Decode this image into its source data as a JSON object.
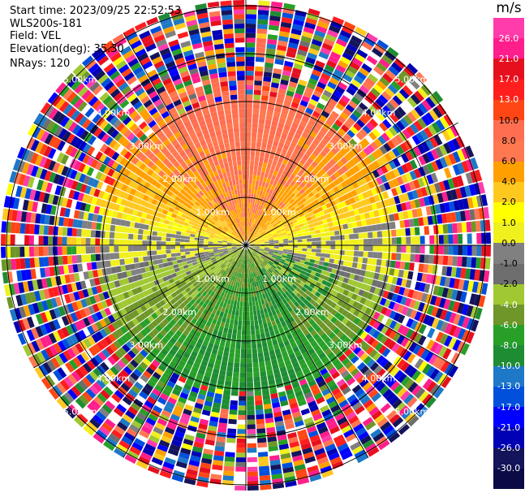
{
  "header": {
    "start_time": "Start time: 2023/09/25 22:52:53",
    "instrument": "WLS200s-181",
    "field": "Field: VEL",
    "elevation": "Elevation(deg): 35.30",
    "nrays": "NRays: 120"
  },
  "colorbar": {
    "unit": "m/s",
    "ticks": [
      "26.0",
      "21.0",
      "17.0",
      "13.0",
      "10.0",
      "8.0",
      "6.0",
      "4.0",
      "2.0",
      "1.0",
      "0.0",
      "-1.0",
      "-2.0",
      "-4.0",
      "-6.0",
      "-8.0",
      "-10.0",
      "-13.0",
      "-17.0",
      "-21.0",
      "-26.0",
      "-30.0"
    ],
    "colors": [
      "#ff3caa",
      "#ff1e8c",
      "#e60f1e",
      "#ff1e1e",
      "#ff4614",
      "#ff6e50",
      "#ff7850",
      "#ffa000",
      "#ffc81e",
      "#ffff00",
      "#f0f01e",
      "#808080",
      "#6e6e6e",
      "#a0c832",
      "#6e9628",
      "#28a028",
      "#1e8c32",
      "#1e78c8",
      "#0050dc",
      "#0000ff",
      "#0000b4",
      "#14145a",
      "#0a0a46"
    ]
  },
  "chart_data": {
    "type": "heatmap",
    "title": "",
    "field": "VEL",
    "units": "m/s",
    "nrays": 120,
    "elevation_deg": 35.3,
    "range_ring_labels": [
      "1.00km",
      "2.00km",
      "3.00km",
      "4.00km",
      "5.00km"
    ],
    "range_rings_km": [
      1,
      2,
      3,
      4,
      5
    ],
    "max_range_km": 5.2,
    "color_levels": [
      -30,
      -26,
      -21,
      -17,
      -13,
      -10,
      -8,
      -6,
      -4,
      -2,
      -1,
      0,
      1,
      2,
      4,
      6,
      8,
      10,
      13,
      17,
      21,
      26
    ],
    "velocity_pattern": {
      "north_sector": "positive, 2 to 10 m/s (orange/red center, yellow edges)",
      "south_sector": "negative, -2 to -8 m/s (green with blue patches)",
      "outer_gates": "noise beyond ~3.5 km"
    }
  }
}
